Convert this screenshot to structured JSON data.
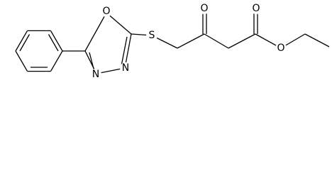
{
  "molecule": {
    "atoms": [
      "O",
      "N",
      "N",
      "S",
      "O",
      "O",
      "O"
    ]
  }
}
